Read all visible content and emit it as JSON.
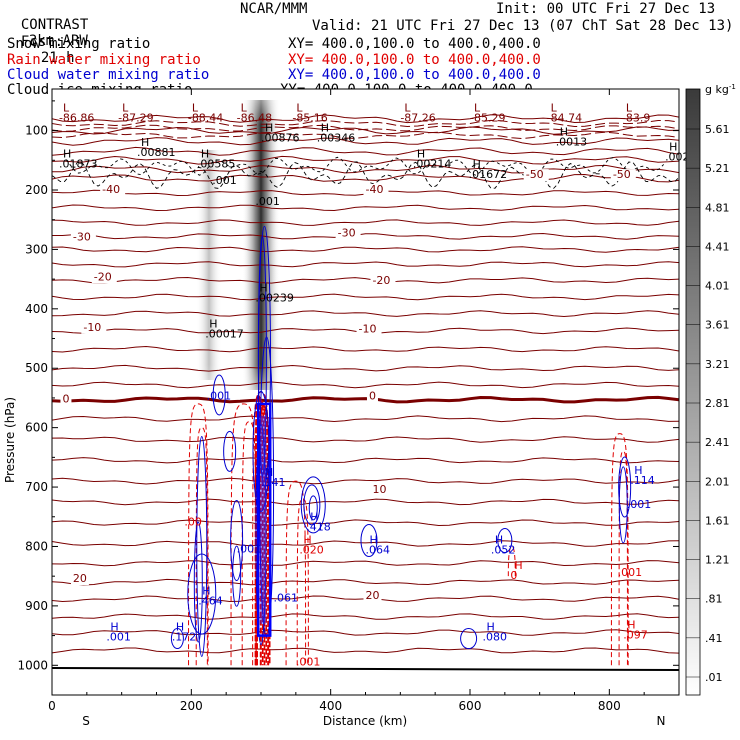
{
  "header": {
    "product": "CONTRAST",
    "model": "3km ARW",
    "org": "NCAR/MMM",
    "init": "Init: 00 UTC Fri 27 Dec 13",
    "fcst_label": "Fcst:",
    "fcst_value": "21 h",
    "valid": "Valid: 21 UTC Fri 27 Dec 13 (07 ChT Sat 28 Dec 13)",
    "fields": [
      {
        "name": "Snow mixing ratio",
        "xy": "XY= 400.0,100.0 to 400.0,400.0",
        "color": "#000000"
      },
      {
        "name": "Rain water mixing ratio",
        "xy": "XY= 400.0,100.0 to 400.0,400.0",
        "color": "#e00000"
      },
      {
        "name": "Cloud water mixing ratio",
        "xy": "XY= 400.0,100.0 to 400.0,400.0",
        "color": "#0000d0"
      },
      {
        "name": "Cloud ice mixing ratio",
        "xy": "XY= 400.0,100.0 to 400.0,400.0",
        "color": "#000000"
      }
    ]
  },
  "chart_data": {
    "type": "heatmap",
    "xlabel": "Distance (km)",
    "ylabel": "Pressure (hPa)",
    "x_ticks": [
      0,
      200,
      400,
      600,
      800
    ],
    "y_ticks": [
      100,
      200,
      300,
      400,
      500,
      600,
      700,
      800,
      900,
      1000
    ],
    "xlim": [
      0,
      900
    ],
    "ylim": [
      30,
      1050
    ],
    "left_end": "S",
    "right_end": "N",
    "colorbar": {
      "unit": "g kg",
      "unit_exp": "-1",
      "labels": [
        "5.61",
        "5.21",
        "4.81",
        "4.41",
        "4.01",
        "3.61",
        "3.21",
        "2.81",
        "2.41",
        "2.01",
        "1.61",
        "1.21",
        ".81",
        ".41",
        ".01"
      ]
    },
    "temperature_contours": {
      "color": "#7a0000",
      "labels": [
        {
          "v": "-40",
          "x": 72,
          "p": 205
        },
        {
          "v": "-40",
          "x": 450,
          "p": 205
        },
        {
          "v": "-30",
          "x": 30,
          "p": 285
        },
        {
          "v": "-30",
          "x": 410,
          "p": 278
        },
        {
          "v": "-20",
          "x": 60,
          "p": 352
        },
        {
          "v": "-20",
          "x": 460,
          "p": 358
        },
        {
          "v": "-10",
          "x": 45,
          "p": 437
        },
        {
          "v": "-10",
          "x": 440,
          "p": 440
        },
        {
          "v": "0",
          "x": 15,
          "p": 558
        },
        {
          "v": "0",
          "x": 455,
          "p": 553
        },
        {
          "v": "10",
          "x": 460,
          "p": 710
        },
        {
          "v": "20",
          "x": 30,
          "p": 860
        },
        {
          "v": "20",
          "x": 450,
          "p": 888
        },
        {
          "v": "-50",
          "x": 680,
          "p": 180
        },
        {
          "v": "-50",
          "x": 805,
          "p": 180
        }
      ]
    },
    "extrema": [
      {
        "t": "L",
        "v": "-86.86",
        "x": 10,
        "p": 85,
        "c": "#7a0000"
      },
      {
        "t": "L",
        "v": "-87.29",
        "x": 95,
        "p": 85,
        "c": "#7a0000"
      },
      {
        "t": "L",
        "v": "-88.44",
        "x": 195,
        "p": 85,
        "c": "#7a0000"
      },
      {
        "t": "L",
        "v": "-86.48",
        "x": 265,
        "p": 85,
        "c": "#7a0000"
      },
      {
        "t": "L",
        "v": "-85.16",
        "x": 345,
        "p": 85,
        "c": "#7a0000"
      },
      {
        "t": "L",
        "v": "-87.26",
        "x": 500,
        "p": 85,
        "c": "#7a0000"
      },
      {
        "t": "L",
        "v": "-85.29",
        "x": 600,
        "p": 85,
        "c": "#7a0000"
      },
      {
        "t": "L",
        "v": "-84.74",
        "x": 710,
        "p": 85,
        "c": "#7a0000"
      },
      {
        "t": "L",
        "v": "-83.9",
        "x": 818,
        "p": 85,
        "c": "#7a0000"
      },
      {
        "t": "H",
        "v": ".00876",
        "x": 300,
        "p": 118,
        "c": "#000000"
      },
      {
        "t": "H",
        "v": ".00346",
        "x": 380,
        "p": 118,
        "c": "#000000"
      },
      {
        "t": "H",
        "v": ".0013",
        "x": 723,
        "p": 125,
        "c": "#000000"
      },
      {
        "t": "H",
        "v": ".01873",
        "x": 10,
        "p": 162,
        "c": "#000000"
      },
      {
        "t": "H",
        "v": ".00881",
        "x": 122,
        "p": 143,
        "c": "#000000"
      },
      {
        "t": "H",
        "v": ".00585",
        "x": 208,
        "p": 162,
        "c": "#000000"
      },
      {
        "t": "H",
        "v": ".00214",
        "x": 518,
        "p": 162,
        "c": "#000000"
      },
      {
        "t": "H",
        "v": ".01672",
        "x": 598,
        "p": 180,
        "c": "#000000"
      },
      {
        "t": "H",
        "v": ".002",
        "x": 880,
        "p": 150,
        "c": "#000000"
      },
      {
        "t": "",
        "v": ".001",
        "x": 230,
        "p": 190,
        "c": "#000000"
      },
      {
        "t": "",
        "v": ".001",
        "x": 292,
        "p": 225,
        "c": "#000000"
      },
      {
        "t": "H",
        "v": ".00239",
        "x": 292,
        "p": 388,
        "c": "#000000"
      },
      {
        "t": "H",
        "v": ".00017",
        "x": 220,
        "p": 448,
        "c": "#000000"
      },
      {
        "t": "",
        "v": ".001",
        "x": 222,
        "p": 553,
        "c": "#0000d0"
      },
      {
        "t": "H",
        "v": ".141",
        "x": 300,
        "p": 698,
        "c": "#0000d0"
      },
      {
        "t": "H",
        "v": ".418",
        "x": 365,
        "p": 773,
        "c": "#0000d0"
      },
      {
        "t": "H",
        "v": ".020",
        "x": 355,
        "p": 812,
        "c": "#e00000"
      },
      {
        "t": "",
        "v": ".001",
        "x": 265,
        "p": 810,
        "c": "#0000d0"
      },
      {
        "t": "",
        "v": ".00",
        "x": 190,
        "p": 765,
        "c": "#e00000"
      },
      {
        "t": "H",
        "v": ".064",
        "x": 450,
        "p": 812,
        "c": "#0000d0"
      },
      {
        "t": "H",
        "v": ".052",
        "x": 630,
        "p": 812,
        "c": "#0000d0"
      },
      {
        "t": "H",
        "v": "0",
        "x": 658,
        "p": 855,
        "c": "#e00000"
      },
      {
        "t": "",
        "v": ".001",
        "x": 812,
        "p": 850,
        "c": "#e00000"
      },
      {
        "t": "H",
        "v": ".114",
        "x": 830,
        "p": 695,
        "c": "#0000d0"
      },
      {
        "t": "",
        "v": ".001",
        "x": 825,
        "p": 735,
        "c": "#0000d0"
      },
      {
        "t": "H",
        "v": ".464",
        "x": 210,
        "p": 898,
        "c": "#0000d0"
      },
      {
        "t": "",
        "v": ".061",
        "x": 318,
        "p": 893,
        "c": "#0000d0"
      },
      {
        "t": "H",
        "v": ".001",
        "x": 78,
        "p": 958,
        "c": "#0000d0"
      },
      {
        "t": "H",
        "v": ".172",
        "x": 172,
        "p": 958,
        "c": "#0000d0"
      },
      {
        "t": "H",
        "v": ".080",
        "x": 618,
        "p": 958,
        "c": "#0000d0"
      },
      {
        "t": "H",
        "v": ".097",
        "x": 820,
        "p": 955,
        "c": "#e00000"
      },
      {
        "t": "",
        "v": ".001",
        "x": 350,
        "p": 1000,
        "c": "#e00000"
      }
    ]
  }
}
